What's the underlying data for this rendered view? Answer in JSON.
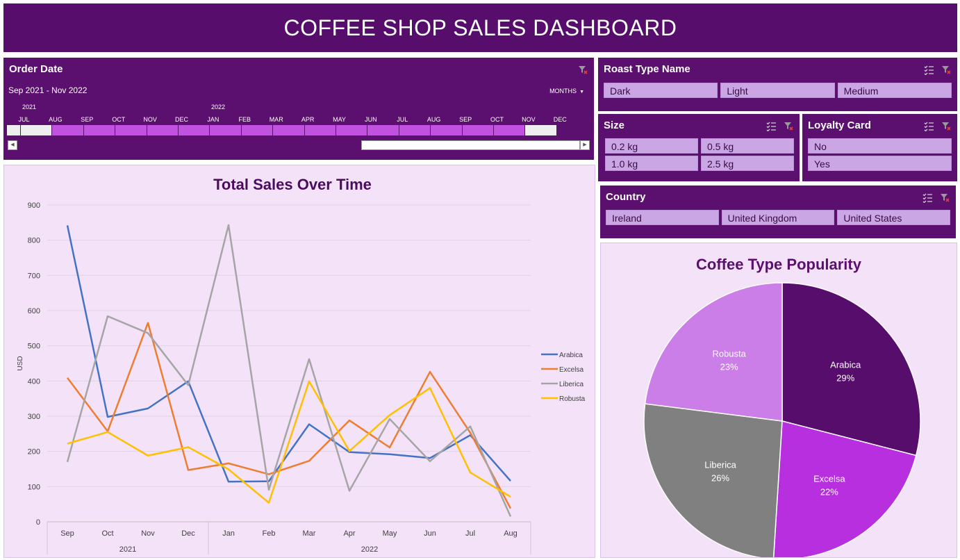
{
  "header": {
    "title": "COFFEE SHOP SALES DASHBOARD"
  },
  "colors": {
    "panel": "#5b0f6e",
    "chart_bg": "#f3e2f8",
    "slicer_button": "#caa7e4",
    "timeline_selected": "#c152e0",
    "arabica": "#4472c4",
    "excelsa": "#ed7d31",
    "liberica": "#a5a5a5",
    "robusta": "#ffc000"
  },
  "timeline": {
    "title": "Order Date",
    "range_label": "Sep 2021 - Nov 2022",
    "period_label": "MONTHS",
    "years": [
      "2021",
      "2022"
    ],
    "months": [
      "JUL",
      "AUG",
      "SEP",
      "OCT",
      "NOV",
      "DEC",
      "JAN",
      "FEB",
      "MAR",
      "APR",
      "MAY",
      "JUN",
      "JUL",
      "AUG",
      "SEP",
      "OCT",
      "NOV",
      "DEC"
    ],
    "selected": [
      false,
      false,
      true,
      true,
      true,
      true,
      true,
      true,
      true,
      true,
      true,
      true,
      true,
      true,
      true,
      true,
      true,
      false
    ],
    "clear_icon": "clear-filter-icon"
  },
  "slicers": {
    "roast": {
      "title": "Roast Type Name",
      "items": [
        "Dark",
        "Light",
        "Medium"
      ]
    },
    "size": {
      "title": "Size",
      "items": [
        "0.2 kg",
        "0.5 kg",
        "1.0 kg",
        "2.5 kg"
      ]
    },
    "loyalty": {
      "title": "Loyalty Card",
      "items": [
        "No",
        "Yes"
      ]
    },
    "country": {
      "title": "Country",
      "items": [
        "Ireland",
        "United Kingdom",
        "United States"
      ]
    },
    "icons": {
      "multiselect": "multi-select-icon",
      "clear": "clear-filter-icon"
    }
  },
  "chart_data": [
    {
      "type": "line",
      "title": "Total Sales Over Time",
      "ylabel": "USD",
      "xlabel": "",
      "ylim": [
        0,
        900
      ],
      "yticks": [
        0,
        100,
        200,
        300,
        400,
        500,
        600,
        700,
        800,
        900
      ],
      "categories": [
        "Sep",
        "Oct",
        "Nov",
        "Dec",
        "Jan",
        "Feb",
        "Mar",
        "Apr",
        "May",
        "Jun",
        "Jul",
        "Aug"
      ],
      "year_groups": [
        {
          "label": "2021",
          "count": 4
        },
        {
          "label": "2022",
          "count": 8
        }
      ],
      "grid": true,
      "legend": "right",
      "series": [
        {
          "name": "Arabica",
          "color": "#4472c4",
          "values": [
            842,
            298,
            322,
            399,
            114,
            115,
            277,
            198,
            192,
            181,
            246,
            116
          ]
        },
        {
          "name": "Excelsa",
          "color": "#ed7d31",
          "values": [
            409,
            257,
            565,
            147,
            166,
            135,
            173,
            288,
            211,
            426,
            253,
            38
          ]
        },
        {
          "name": "Liberica",
          "color": "#a5a5a5",
          "values": [
            170,
            584,
            536,
            388,
            843,
            91,
            462,
            88,
            292,
            172,
            271,
            15
          ]
        },
        {
          "name": "Robusta",
          "color": "#ffc000",
          "values": [
            222,
            255,
            188,
            212,
            149,
            54,
            399,
            201,
            303,
            380,
            140,
            71
          ]
        }
      ]
    },
    {
      "type": "pie",
      "title": "Coffee Type Popularity",
      "slices": [
        {
          "name": "Arabica",
          "value": 29,
          "label": "29%",
          "color": "#560d6b",
          "text_color": "#ffffff"
        },
        {
          "name": "Excelsa",
          "value": 22,
          "label": "22%",
          "color": "#b72fde",
          "text_color": "#ffffff"
        },
        {
          "name": "Liberica",
          "value": 26,
          "label": "26%",
          "color": "#808080",
          "text_color": "#ffffff"
        },
        {
          "name": "Robusta",
          "value": 23,
          "label": "23%",
          "color": "#cb7de8",
          "text_color": "#ffffff"
        }
      ]
    }
  ]
}
